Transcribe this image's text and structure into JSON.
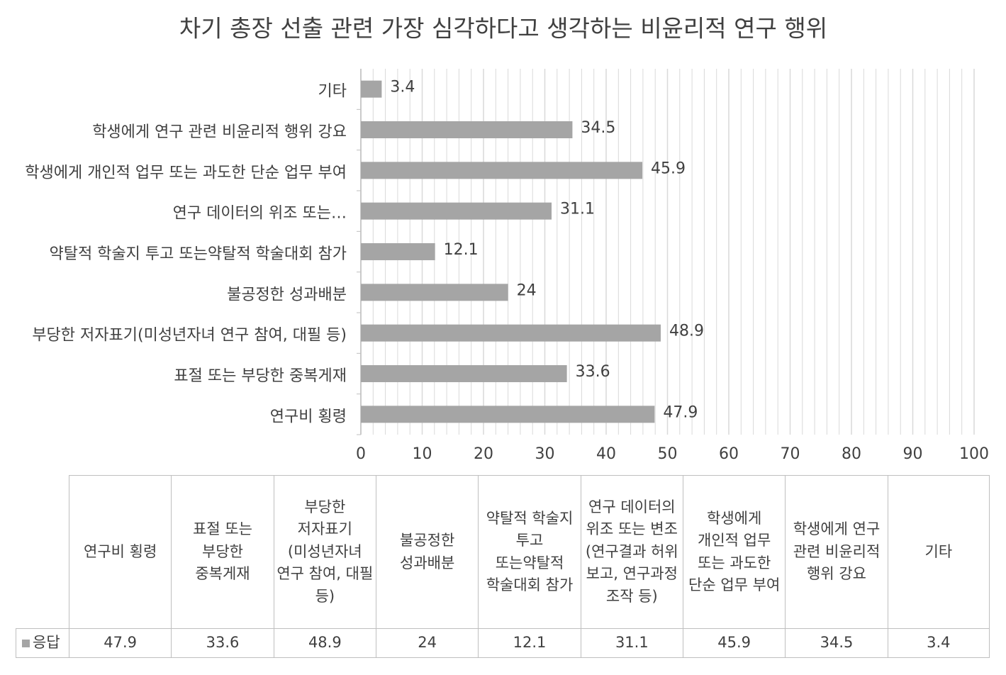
{
  "chart_data": {
    "type": "bar",
    "orientation": "horizontal",
    "title": "차기 총장 선출 관련 가장 심각하다고 생각하는 비윤리적 연구 행위",
    "categories": [
      "연구비 횡령",
      "표절 또는 부당한 중복게재",
      "부당한 저자표기(미성년자녀 연구 참여, 대필 등)",
      "불공정한 성과배분",
      "약탈적 학술지 투고 또는약탈적 학술대회 참가",
      "연구 데이터의 위조 또는 변조(연구결과 허위 보고, 연구과정 조작 등)",
      "학생에게 개인적 업무 또는 과도한 단순 업무 부여",
      "학생에게 연구 관련 비윤리적 행위 강요",
      "기타"
    ],
    "axis_category_labels": [
      "연구비 횡령",
      "표절 또는 부당한 중복게재",
      "부당한 저자표기(미성년자녀 연구 참여, 대필 등)",
      "불공정한 성과배분",
      "약탈적 학술지 투고 또는약탈적 학술대회 참가",
      "연구 데이터의 위조 또는…",
      "학생에게 개인적 업무 또는 과도한 단순 업무 부여",
      "학생에게 연구 관련 비윤리적 행위 강요",
      "기타"
    ],
    "series": [
      {
        "name": "응답",
        "color": "#a5a5a5",
        "values": [
          47.9,
          33.6,
          48.9,
          24,
          12.1,
          31.1,
          45.9,
          34.5,
          3.4
        ]
      }
    ],
    "xlim": [
      0,
      100
    ],
    "xticks": [
      0,
      10,
      20,
      30,
      40,
      50,
      60,
      70,
      80,
      90,
      100
    ],
    "grid": true,
    "minor_grid_interval": 2,
    "data_table": true
  }
}
